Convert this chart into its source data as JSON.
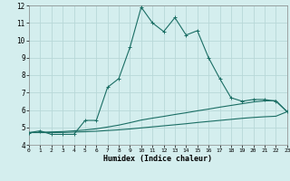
{
  "xlabel": "Humidex (Indice chaleur)",
  "bg_color": "#d4eeee",
  "grid_color": "#b8d8d8",
  "line_color": "#1a6e64",
  "xlim": [
    0,
    23
  ],
  "ylim": [
    4,
    12
  ],
  "xticks": [
    0,
    1,
    2,
    3,
    4,
    5,
    6,
    7,
    8,
    9,
    10,
    11,
    12,
    13,
    14,
    15,
    16,
    17,
    18,
    19,
    20,
    21,
    22,
    23
  ],
  "yticks": [
    4,
    5,
    6,
    7,
    8,
    9,
    10,
    11,
    12
  ],
  "line1_x": [
    0,
    1,
    2,
    3,
    4,
    5,
    6,
    7,
    8,
    9,
    10,
    11,
    12,
    13,
    14,
    15,
    16,
    17,
    18,
    19,
    20,
    21,
    22,
    23
  ],
  "line1_y": [
    4.7,
    4.8,
    4.6,
    4.6,
    4.6,
    5.4,
    5.4,
    7.3,
    7.8,
    9.6,
    11.9,
    11.0,
    10.5,
    11.3,
    10.3,
    10.55,
    9.0,
    7.8,
    6.7,
    6.5,
    6.6,
    6.6,
    6.5,
    5.9
  ],
  "line2_x": [
    0,
    1,
    2,
    3,
    4,
    5,
    6,
    7,
    8,
    9,
    10,
    11,
    12,
    13,
    14,
    15,
    16,
    17,
    18,
    19,
    20,
    21,
    22,
    23
  ],
  "line2_y": [
    4.7,
    4.72,
    4.74,
    4.76,
    4.8,
    4.85,
    4.92,
    5.02,
    5.13,
    5.27,
    5.42,
    5.53,
    5.63,
    5.74,
    5.84,
    5.95,
    6.05,
    6.16,
    6.26,
    6.36,
    6.46,
    6.52,
    6.54,
    5.9
  ],
  "line3_x": [
    0,
    1,
    2,
    3,
    4,
    5,
    6,
    7,
    8,
    9,
    10,
    11,
    12,
    13,
    14,
    15,
    16,
    17,
    18,
    19,
    20,
    21,
    22,
    23
  ],
  "line3_y": [
    4.7,
    4.7,
    4.7,
    4.71,
    4.73,
    4.75,
    4.78,
    4.82,
    4.86,
    4.91,
    4.97,
    5.03,
    5.09,
    5.15,
    5.21,
    5.28,
    5.34,
    5.4,
    5.46,
    5.52,
    5.57,
    5.61,
    5.64,
    5.9
  ]
}
